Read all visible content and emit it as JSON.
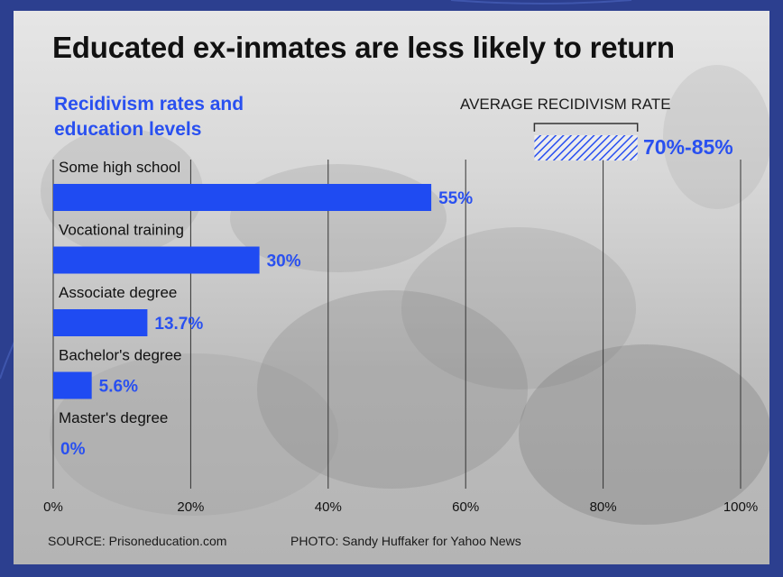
{
  "colors": {
    "frame": "#2c3f8f",
    "bar": "#1f4bf2",
    "accent_text": "#2950f0",
    "gridline": "#333333"
  },
  "title": "Educated ex-inmates are less likely to return",
  "subtitle": "Recidivism rates and education levels",
  "average": {
    "label": "AVERAGE RECIDIVISM RATE",
    "value_text": "70%-85%",
    "range": [
      70,
      85
    ]
  },
  "footer": {
    "source": "SOURCE: Prisoneducation.com",
    "photo": "PHOTO: Sandy Huffaker for Yahoo News"
  },
  "chart_data": {
    "type": "bar",
    "orientation": "horizontal",
    "title": "Educated ex-inmates are less likely to return",
    "subtitle": "Recidivism rates and education levels",
    "categories": [
      "Some high school",
      "Vocational training",
      "Associate degree",
      "Bachelor's degree",
      "Master's degree"
    ],
    "values": [
      55,
      30,
      13.7,
      5.6,
      0
    ],
    "value_labels": [
      "55%",
      "30%",
      "13.7%",
      "5.6%",
      "0%"
    ],
    "xlim": [
      0,
      100
    ],
    "x_ticks": [
      0,
      20,
      40,
      60,
      80,
      100
    ],
    "x_tick_labels": [
      "0%",
      "20%",
      "40%",
      "60%",
      "80%",
      "100%"
    ],
    "grid": true,
    "annotation": {
      "label": "AVERAGE RECIDIVISM RATE",
      "range": [
        70,
        85
      ],
      "text": "70%-85%",
      "style": "hatched"
    }
  }
}
